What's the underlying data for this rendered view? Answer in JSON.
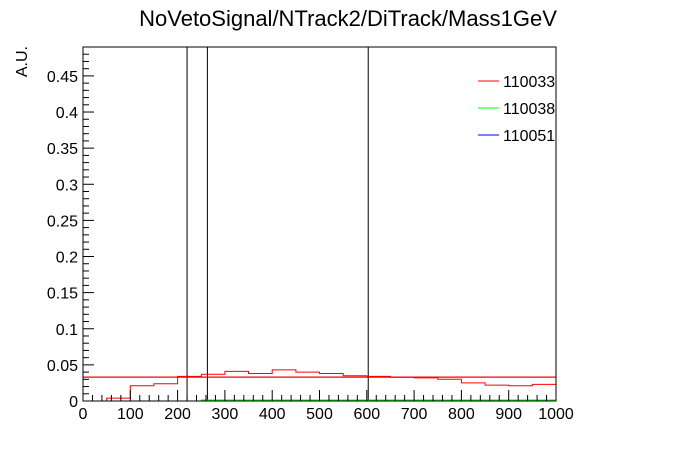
{
  "chart_data": {
    "type": "line",
    "title": "NoVetoSignal/NTrack2/DiTrack/Mass1GeV",
    "xlabel": "",
    "ylabel": "A.U.",
    "xlim": [
      0,
      1000
    ],
    "ylim": [
      0,
      0.49
    ],
    "x_ticks": [
      "0",
      "100",
      "200",
      "300",
      "400",
      "500",
      "600",
      "700",
      "800",
      "900",
      "1000"
    ],
    "y_ticks": [
      "0",
      "0.05",
      "0.1",
      "0.15",
      "0.2",
      "0.25",
      "0.3",
      "0.35",
      "0.4",
      "0.45"
    ],
    "grid": false,
    "legend_position": "top-right",
    "series": [
      {
        "name": "110033",
        "color": "#ff0000",
        "bin_edges": [
          0,
          50,
          100,
          150,
          200,
          250,
          300,
          350,
          400,
          450,
          500,
          550,
          600,
          650,
          700,
          750,
          800,
          850,
          900,
          950,
          1000
        ],
        "values": [
          0.0,
          0.004,
          0.021,
          0.024,
          0.034,
          0.037,
          0.041,
          0.038,
          0.043,
          0.04,
          0.038,
          0.035,
          0.034,
          0.033,
          0.032,
          0.03,
          0.025,
          0.022,
          0.021,
          0.023
        ],
        "fit_level": 0.033
      },
      {
        "name": "110038",
        "color": "#00ff00",
        "bin_edges": [
          0,
          50,
          100,
          150,
          200,
          250,
          300,
          350,
          400,
          450,
          500,
          550,
          600,
          650,
          700,
          750,
          800,
          850,
          900,
          950,
          1000
        ],
        "values": [
          0.0,
          0.0,
          0.0,
          0.0,
          0.0,
          0.001,
          0.001,
          0.001,
          0.001,
          0.001,
          0.001,
          0.001,
          0.001,
          0.001,
          0.001,
          0.001,
          0.001,
          0.001,
          0.001,
          0.001
        ]
      },
      {
        "name": "110051",
        "color": "#0000ff",
        "bin_edges": [
          0,
          50,
          100,
          150,
          200,
          250,
          300,
          350,
          400,
          450,
          500,
          550,
          600,
          650,
          700,
          750,
          800,
          850,
          900,
          950,
          1000
        ],
        "values": [
          0.0,
          0.0,
          0.0,
          0.0,
          0.0,
          0.001,
          0.001,
          0.001,
          0.001,
          0.001,
          0.001,
          0.001,
          0.001,
          0.001,
          0.001,
          0.001,
          0.001,
          0.001,
          0.001,
          0.001
        ]
      }
    ],
    "vertical_lines": [
      220,
      263,
      603
    ]
  }
}
